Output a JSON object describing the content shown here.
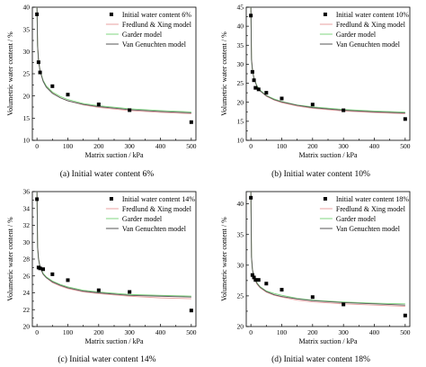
{
  "chart_data": [
    {
      "type": "scatter",
      "caption": "(a) Initial water content 6%",
      "xlabel": "Matrix suction / kPa",
      "ylabel": "Volumetric water content / %",
      "xlim": [
        -15,
        515
      ],
      "ylim": [
        10,
        40
      ],
      "xticks": [
        0,
        100,
        200,
        300,
        400,
        500
      ],
      "yticks": [
        10,
        15,
        20,
        25,
        30,
        35,
        40
      ],
      "legend_position": "top-right",
      "grid": false,
      "points_label": "Initial water content 6%",
      "points": [
        [
          0,
          38.4
        ],
        [
          5,
          27.6
        ],
        [
          10,
          25.3
        ],
        [
          50,
          22.2
        ],
        [
          100,
          20.3
        ],
        [
          200,
          18.1
        ],
        [
          300,
          16.8
        ],
        [
          500,
          14.1
        ]
      ],
      "series": [
        {
          "name": "Fredlund & Xing model",
          "color": "#e8a0a0",
          "x": [
            0,
            2,
            5,
            10,
            20,
            30,
            50,
            75,
            100,
            150,
            200,
            300,
            400,
            500
          ],
          "y": [
            40,
            31.5,
            28.2,
            25.8,
            23.4,
            22.2,
            20.7,
            19.6,
            18.9,
            18.0,
            17.4,
            16.7,
            16.3,
            16.0
          ]
        },
        {
          "name": "Garder model",
          "color": "#7fd67f",
          "x": [
            0,
            2,
            5,
            10,
            20,
            30,
            50,
            75,
            100,
            150,
            200,
            300,
            400,
            500
          ],
          "y": [
            40,
            31.0,
            28.0,
            25.7,
            23.5,
            22.3,
            20.9,
            19.9,
            19.2,
            18.3,
            17.8,
            17.1,
            16.7,
            16.4
          ]
        },
        {
          "name": "Van Genuchten model",
          "color": "#555555",
          "x": [
            0,
            2,
            5,
            10,
            20,
            30,
            50,
            75,
            100,
            150,
            200,
            300,
            400,
            500
          ],
          "y": [
            40,
            31.2,
            28.0,
            25.6,
            23.3,
            22.0,
            20.6,
            19.6,
            18.9,
            18.1,
            17.6,
            16.9,
            16.5,
            16.2
          ]
        }
      ]
    },
    {
      "type": "scatter",
      "caption": "(b) Initial water content 10%",
      "xlabel": "Matrix suction / kPa",
      "ylabel": "Volumetric water content / %",
      "xlim": [
        -15,
        515
      ],
      "ylim": [
        10,
        45
      ],
      "xticks": [
        0,
        100,
        200,
        300,
        400,
        500
      ],
      "yticks": [
        10,
        15,
        20,
        25,
        30,
        35,
        40,
        45
      ],
      "legend_position": "top-right",
      "grid": false,
      "points_label": "Initial water content 10%",
      "points": [
        [
          0,
          42.8
        ],
        [
          5,
          28.0
        ],
        [
          10,
          25.8
        ],
        [
          15,
          23.8
        ],
        [
          25,
          23.4
        ],
        [
          50,
          22.5
        ],
        [
          100,
          21.0
        ],
        [
          200,
          19.4
        ],
        [
          300,
          17.9
        ],
        [
          500,
          15.6
        ]
      ],
      "series": [
        {
          "name": "Fredlund & Xing model",
          "color": "#e8a0a0",
          "x": [
            0,
            2,
            5,
            10,
            20,
            30,
            50,
            75,
            100,
            150,
            200,
            300,
            400,
            500
          ],
          "y": [
            45,
            31.5,
            28.8,
            26.4,
            24.2,
            23.0,
            21.6,
            20.6,
            19.9,
            19.0,
            18.4,
            17.7,
            17.3,
            17.0
          ]
        },
        {
          "name": "Garder model",
          "color": "#7fd67f",
          "x": [
            0,
            2,
            5,
            10,
            20,
            30,
            50,
            75,
            100,
            150,
            200,
            300,
            400,
            500
          ],
          "y": [
            45,
            31.0,
            28.5,
            26.3,
            24.3,
            23.2,
            21.8,
            20.9,
            20.2,
            19.3,
            18.8,
            18.1,
            17.7,
            17.4
          ]
        },
        {
          "name": "Van Genuchten model",
          "color": "#555555",
          "x": [
            0,
            2,
            5,
            10,
            20,
            30,
            50,
            75,
            100,
            150,
            200,
            300,
            400,
            500
          ],
          "y": [
            45,
            31.2,
            28.6,
            26.2,
            24.1,
            23.0,
            21.7,
            20.7,
            20.1,
            19.2,
            18.6,
            17.9,
            17.5,
            17.2
          ]
        }
      ]
    },
    {
      "type": "scatter",
      "caption": "(c) Initial water content 14%",
      "xlabel": "Matrix suction / kPa",
      "ylabel": "Volumetric water content / %",
      "xlim": [
        -15,
        515
      ],
      "ylim": [
        20,
        36
      ],
      "xticks": [
        0,
        100,
        200,
        300,
        400,
        500
      ],
      "yticks": [
        20,
        22,
        24,
        26,
        28,
        30,
        32,
        34,
        36
      ],
      "legend_position": "top-right",
      "grid": false,
      "points_label": "Initial water content 14%",
      "points": [
        [
          0,
          35.1
        ],
        [
          5,
          27.0
        ],
        [
          10,
          26.9
        ],
        [
          20,
          26.8
        ],
        [
          50,
          26.2
        ],
        [
          100,
          25.5
        ],
        [
          200,
          24.3
        ],
        [
          300,
          24.1
        ],
        [
          500,
          21.9
        ]
      ],
      "series": [
        {
          "name": "Fredlund & Xing model",
          "color": "#e8a0a0",
          "x": [
            0,
            2,
            5,
            10,
            20,
            30,
            50,
            75,
            100,
            150,
            200,
            300,
            400,
            500
          ],
          "y": [
            36,
            29.6,
            28.1,
            27.1,
            26.2,
            25.8,
            25.2,
            24.8,
            24.5,
            24.1,
            23.9,
            23.6,
            23.4,
            23.3
          ]
        },
        {
          "name": "Garder model",
          "color": "#7fd67f",
          "x": [
            0,
            2,
            5,
            10,
            20,
            30,
            50,
            75,
            100,
            150,
            200,
            300,
            400,
            500
          ],
          "y": [
            36,
            29.3,
            28.0,
            27.1,
            26.3,
            25.9,
            25.4,
            25.0,
            24.7,
            24.3,
            24.1,
            23.8,
            23.7,
            23.6
          ]
        },
        {
          "name": "Van Genuchten model",
          "color": "#555555",
          "x": [
            0,
            2,
            5,
            10,
            20,
            30,
            50,
            75,
            100,
            150,
            200,
            300,
            400,
            500
          ],
          "y": [
            36,
            29.4,
            28.0,
            27.0,
            26.2,
            25.8,
            25.3,
            24.9,
            24.6,
            24.2,
            24.0,
            23.7,
            23.6,
            23.5
          ]
        }
      ]
    },
    {
      "type": "scatter",
      "caption": "(d) Initial water content 18%",
      "xlabel": "Matrix suction / kPa",
      "ylabel": "Volumetric water content / %",
      "xlim": [
        -15,
        515
      ],
      "ylim": [
        20,
        42
      ],
      "xticks": [
        0,
        100,
        200,
        300,
        400,
        500
      ],
      "yticks": [
        20,
        25,
        30,
        35,
        40
      ],
      "legend_position": "top-right",
      "grid": false,
      "points_label": "Initial water content 18%",
      "points": [
        [
          0,
          41.0
        ],
        [
          5,
          28.4
        ],
        [
          10,
          28.0
        ],
        [
          15,
          27.6
        ],
        [
          25,
          27.6
        ],
        [
          50,
          27.0
        ],
        [
          100,
          26.0
        ],
        [
          200,
          24.8
        ],
        [
          300,
          23.6
        ],
        [
          500,
          21.8
        ]
      ],
      "series": [
        {
          "name": "Fredlund & Xing model",
          "color": "#e8a0a0",
          "x": [
            0,
            2,
            5,
            10,
            20,
            30,
            50,
            75,
            100,
            150,
            200,
            300,
            400,
            500
          ],
          "y": [
            42,
            31.5,
            29.4,
            28.0,
            26.9,
            26.3,
            25.6,
            25.1,
            24.8,
            24.3,
            24.0,
            23.7,
            23.5,
            23.3
          ]
        },
        {
          "name": "Garder model",
          "color": "#7fd67f",
          "x": [
            0,
            2,
            5,
            10,
            20,
            30,
            50,
            75,
            100,
            150,
            200,
            300,
            400,
            500
          ],
          "y": [
            42,
            31.2,
            29.3,
            28.1,
            27.1,
            26.5,
            25.8,
            25.4,
            25.1,
            24.6,
            24.3,
            24.0,
            23.8,
            23.7
          ]
        },
        {
          "name": "Van Genuchten model",
          "color": "#555555",
          "x": [
            0,
            2,
            5,
            10,
            20,
            30,
            50,
            75,
            100,
            150,
            200,
            300,
            400,
            500
          ],
          "y": [
            42,
            31.3,
            29.3,
            28.0,
            27.0,
            26.4,
            25.7,
            25.2,
            24.9,
            24.5,
            24.2,
            23.9,
            23.7,
            23.5
          ]
        }
      ]
    }
  ]
}
